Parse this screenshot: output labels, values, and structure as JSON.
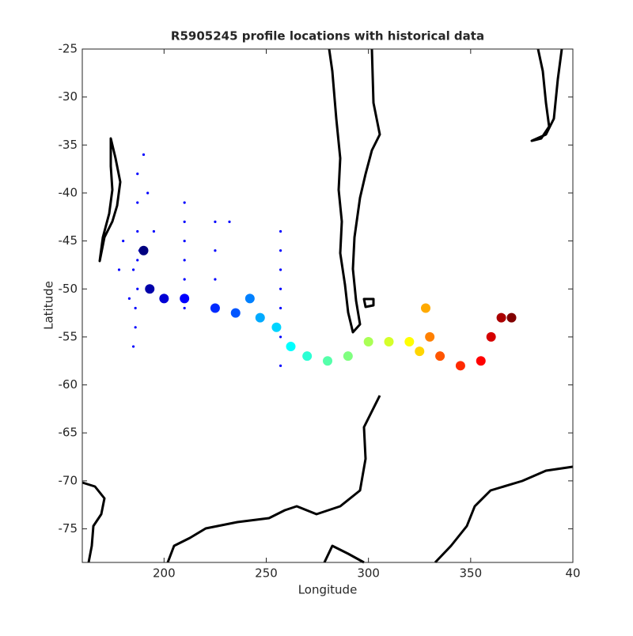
{
  "chart_data": {
    "type": "scatter",
    "title": "R5905245 profile locations with historical data",
    "xlabel": "Longitude",
    "ylabel": "Latitude",
    "xlim": [
      160,
      400
    ],
    "ylim": [
      -78.5,
      -25
    ],
    "xticks": [
      200,
      250,
      300,
      350,
      {
        "value": 400,
        "label": "40"
      }
    ],
    "yticks": [
      -75,
      -70,
      -65,
      -60,
      -55,
      -50,
      -45,
      -40,
      -35,
      -30,
      -25
    ],
    "series": [
      {
        "color": "#0000ff",
        "x": [
          187,
          187,
          187,
          187,
          187,
          186,
          186,
          185,
          185,
          210,
          210,
          210,
          210,
          210,
          210,
          225,
          225,
          225,
          225,
          232,
          257,
          257,
          257,
          257,
          257,
          257,
          257,
          190,
          192,
          180,
          178,
          183,
          188,
          195
        ],
        "y": [
          -38,
          -41,
          -44,
          -47,
          -50,
          -52,
          -54,
          -56,
          -48,
          -41,
          -43,
          -45,
          -47,
          -49,
          -52,
          -43,
          -46,
          -49,
          -52,
          -43,
          -44,
          -46,
          -48,
          -50,
          -52,
          -55,
          -58,
          -36,
          -40,
          -45,
          -48,
          -51,
          -46,
          -44
        ]
      },
      {
        "colormap": "jet",
        "x": [
          190,
          193,
          200,
          210,
          225,
          235,
          242,
          247,
          255,
          262,
          270,
          280,
          290,
          300,
          310,
          320,
          325,
          328,
          330,
          335,
          345,
          355,
          360,
          365,
          370
        ],
        "y": [
          -46,
          -50,
          -51,
          -51,
          -52,
          -52.5,
          -51,
          -53,
          -54,
          -56,
          -57,
          -57.5,
          -57,
          -55.5,
          -55.5,
          -55.5,
          -56.5,
          -52,
          -55,
          -57,
          -58,
          -57.5,
          -55,
          -53,
          -53
        ]
      }
    ]
  }
}
